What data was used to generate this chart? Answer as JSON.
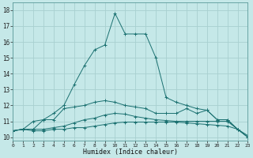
{
  "title": "",
  "xlabel": "Humidex (Indice chaleur)",
  "xlim": [
    0,
    23
  ],
  "ylim": [
    9.8,
    18.5
  ],
  "xticks": [
    0,
    1,
    2,
    3,
    4,
    5,
    6,
    7,
    8,
    9,
    10,
    11,
    12,
    13,
    14,
    15,
    16,
    17,
    18,
    19,
    20,
    21,
    22,
    23
  ],
  "yticks": [
    10,
    11,
    12,
    13,
    14,
    15,
    16,
    17,
    18
  ],
  "bg_color": "#c5e8e8",
  "grid_color": "#a8d0d0",
  "line_color": "#1a7070",
  "lines": [
    {
      "x": [
        0,
        1,
        2,
        3,
        4,
        5,
        6,
        7,
        8,
        9,
        10,
        11,
        12,
        13,
        14,
        15,
        16,
        17,
        18,
        19,
        20,
        21,
        22,
        23
      ],
      "y": [
        10.4,
        10.5,
        10.4,
        10.4,
        10.5,
        10.5,
        10.6,
        10.6,
        10.7,
        10.8,
        10.9,
        10.95,
        10.95,
        10.95,
        10.95,
        10.95,
        10.95,
        10.9,
        10.85,
        10.8,
        10.75,
        10.7,
        10.5,
        10.0
      ]
    },
    {
      "x": [
        0,
        1,
        2,
        3,
        4,
        5,
        6,
        7,
        8,
        9,
        10,
        11,
        12,
        13,
        14,
        15,
        16,
        17,
        18,
        19,
        20,
        21,
        22,
        23
      ],
      "y": [
        10.4,
        10.5,
        10.5,
        10.5,
        10.6,
        10.7,
        10.9,
        11.1,
        11.2,
        11.4,
        11.5,
        11.45,
        11.3,
        11.2,
        11.1,
        11.05,
        11.0,
        11.0,
        11.0,
        11.0,
        11.0,
        11.0,
        10.5,
        10.1
      ]
    },
    {
      "x": [
        0,
        1,
        2,
        3,
        4,
        5,
        6,
        7,
        8,
        9,
        10,
        11,
        12,
        13,
        14,
        15,
        16,
        17,
        18,
        19,
        20,
        21,
        22,
        23
      ],
      "y": [
        10.4,
        10.5,
        11.0,
        11.1,
        11.1,
        11.8,
        11.9,
        12.0,
        12.2,
        12.3,
        12.2,
        12.0,
        11.9,
        11.8,
        11.5,
        11.5,
        11.5,
        11.8,
        11.5,
        11.7,
        11.1,
        11.1,
        10.5,
        10.0
      ]
    },
    {
      "x": [
        0,
        1,
        2,
        3,
        4,
        5,
        6,
        7,
        8,
        9,
        10,
        11,
        12,
        13,
        14,
        15,
        16,
        17,
        18,
        19,
        20,
        21,
        22,
        23
      ],
      "y": [
        10.4,
        10.5,
        10.5,
        11.1,
        11.5,
        12.0,
        13.3,
        14.5,
        15.5,
        15.8,
        17.8,
        16.5,
        16.5,
        16.5,
        15.0,
        12.5,
        12.2,
        12.0,
        11.8,
        11.7,
        11.1,
        11.1,
        10.5,
        10.0
      ]
    }
  ]
}
